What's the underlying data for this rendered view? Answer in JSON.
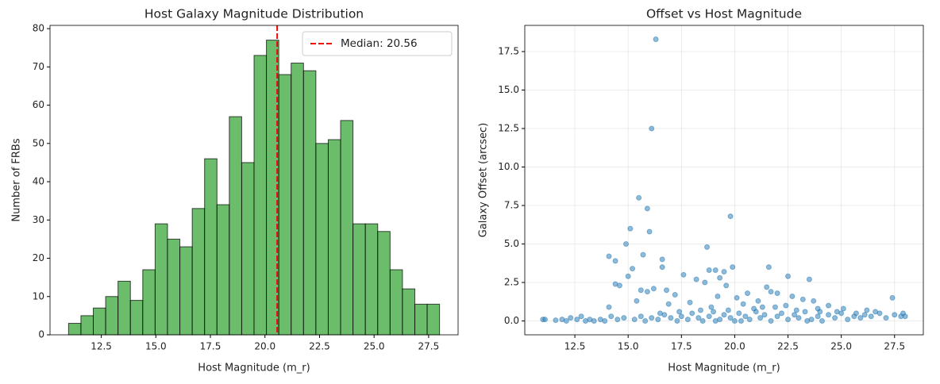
{
  "chart_data": [
    {
      "type": "histogram",
      "title": "Host Galaxy Magnitude Distribution",
      "xlabel": "Host Magnitude (m_r)",
      "ylabel": "Number of FRBs",
      "bins": [
        11,
        11.5667,
        12.1333,
        12.7,
        13.2667,
        13.8333,
        14.4,
        14.9667,
        15.5333,
        16.1,
        16.6667,
        17.2333,
        17.8,
        18.3667,
        18.9333,
        19.5,
        20.0667,
        20.6333,
        21.2,
        21.7667,
        22.3333,
        22.9,
        23.4667,
        24.0333,
        24.6,
        25.1667,
        25.7333,
        26.3,
        26.8667,
        27.4333,
        28
      ],
      "values": [
        3,
        5,
        7,
        10,
        14,
        9,
        17,
        29,
        25,
        23,
        33,
        46,
        34,
        57,
        45,
        73,
        77,
        68,
        71,
        69,
        50,
        51,
        56,
        29,
        29,
        27,
        17,
        12,
        8,
        8
      ],
      "color": "#2ca02c",
      "vline": {
        "value": 20.56,
        "label": "Median: 20.56",
        "color": "#ff0000"
      },
      "legend": "upper right",
      "xlim": [
        10.15,
        28.85
      ],
      "ylim": [
        0,
        80.85
      ],
      "xticks": [
        12.5,
        {
          "value": 15,
          "label": "15.0"
        },
        17.5,
        {
          "value": 20,
          "label": "20.0"
        },
        22.5,
        {
          "value": 25,
          "label": "25.0"
        },
        27.5
      ],
      "yticks": [
        0,
        10,
        20,
        30,
        40,
        50,
        60,
        70,
        80
      ],
      "grid": false
    },
    {
      "type": "scatter",
      "title": "Offset vs Host Magnitude",
      "xlabel": "Host Magnitude (m_r)",
      "ylabel": "Galaxy Offset (arcsec)",
      "x": [
        16.3,
        16.1,
        15.5,
        15.9,
        15.1,
        19.8,
        16.0,
        14.9,
        18.7,
        14.1,
        15.7,
        16.6,
        14.4,
        15.2,
        19.9,
        21.6,
        22.5,
        23.5,
        17.6,
        18.8,
        19.1,
        19.5,
        16.6,
        15.0,
        14.4,
        14.6,
        15.6,
        15.9,
        16.2,
        16.8,
        17.2,
        18.2,
        18.6,
        19.3,
        19.6,
        20.1,
        20.6,
        21.5,
        21.7,
        22.0,
        22.7,
        23.2,
        23.7,
        24.4,
        25.1,
        26.2,
        27.4,
        14.1,
        15.4,
        16.9,
        17.9,
        18.9,
        19.2,
        20.4,
        21.1,
        21.9,
        22.4,
        23.9,
        24.8,
        25.7,
        26.6,
        27.9,
        28.0,
        11.0,
        11.1,
        11.6,
        11.9,
        12.1,
        12.3,
        12.6,
        12.8,
        13.0,
        13.2,
        13.4,
        13.7,
        13.9,
        14.2,
        14.5,
        14.8,
        15.3,
        15.6,
        15.8,
        16.1,
        16.4,
        16.7,
        17.0,
        17.3,
        17.5,
        17.8,
        18.0,
        18.3,
        18.5,
        18.8,
        19.0,
        19.3,
        19.5,
        19.8,
        20.0,
        20.2,
        20.5,
        20.7,
        21.0,
        21.2,
        21.4,
        21.7,
        22.0,
        22.2,
        22.5,
        22.8,
        23.0,
        23.3,
        23.6,
        23.9,
        24.1,
        24.4,
        24.7,
        25.0,
        25.3,
        25.6,
        25.9,
        26.1,
        26.4,
        26.8,
        27.1,
        27.5,
        27.8,
        20.9,
        19.7,
        18.4,
        17.4,
        16.5,
        22.9,
        24.0,
        21.3,
        20.3,
        19.1,
        23.4
      ],
      "values": [
        18.3,
        12.5,
        8.0,
        7.3,
        6.0,
        6.8,
        5.8,
        5.0,
        4.8,
        4.2,
        4.3,
        4.0,
        3.9,
        3.4,
        3.5,
        3.5,
        2.9,
        2.7,
        3.0,
        3.3,
        3.3,
        3.2,
        3.5,
        2.9,
        2.4,
        2.3,
        2.0,
        1.9,
        2.1,
        2.0,
        1.7,
        2.7,
        2.5,
        2.8,
        2.3,
        1.5,
        1.8,
        2.2,
        1.9,
        1.8,
        1.6,
        1.4,
        1.3,
        1.0,
        0.8,
        0.7,
        1.5,
        0.9,
        1.3,
        1.1,
        1.2,
        0.9,
        1.6,
        1.1,
        1.3,
        0.9,
        1.0,
        0.8,
        0.6,
        0.5,
        0.6,
        0.5,
        0.3,
        0.1,
        0.1,
        0.05,
        0.1,
        0,
        0.2,
        0.1,
        0.3,
        0,
        0.1,
        0,
        0.1,
        0,
        0.3,
        0.1,
        0.2,
        0.1,
        0.3,
        0,
        0.2,
        0.1,
        0.4,
        0.2,
        0,
        0.3,
        0.1,
        0.5,
        0.2,
        0,
        0.3,
        0.6,
        0.1,
        0.4,
        0.2,
        0,
        0.5,
        0.3,
        0.1,
        0.6,
        0.2,
        0.4,
        0,
        0.3,
        0.5,
        0.1,
        0.4,
        0.2,
        0.6,
        0.1,
        0.3,
        0,
        0.4,
        0.2,
        0.5,
        0.1,
        0.3,
        0.2,
        0.4,
        0.3,
        0.5,
        0.2,
        0.4,
        0.3,
        0.8,
        0.7,
        0.7,
        0.6,
        0.5,
        0.7,
        0.6,
        0.9,
        0,
        0,
        0
      ],
      "color": "#1f77b4",
      "xlim": [
        10.15,
        28.85
      ],
      "ylim": [
        -0.9,
        19.2
      ],
      "xticks": [
        12.5,
        {
          "value": 15,
          "label": "15.0"
        },
        17.5,
        {
          "value": 20,
          "label": "20.0"
        },
        22.5,
        {
          "value": 25,
          "label": "25.0"
        },
        27.5
      ],
      "yticks": [
        {
          "value": 0,
          "label": "0.0"
        },
        2.5,
        {
          "value": 5,
          "label": "5.0"
        },
        7.5,
        {
          "value": 10,
          "label": "10.0"
        },
        12.5,
        {
          "value": 15,
          "label": "15.0"
        },
        17.5
      ],
      "grid": true
    }
  ]
}
